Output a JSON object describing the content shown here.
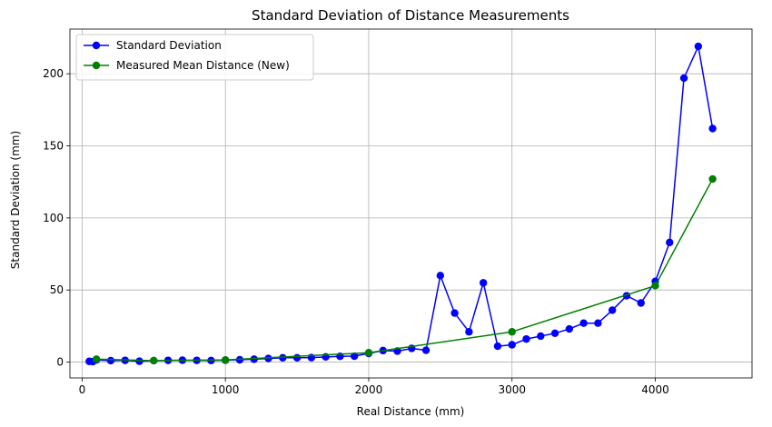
{
  "chart_data": {
    "type": "line",
    "title": "Standard Deviation of Distance Measurements",
    "xlabel": "Real Distance (mm)",
    "ylabel": "Standard Deviation (mm)",
    "xlim": [
      -85,
      4675
    ],
    "ylim": [
      -11,
      231
    ],
    "xticks": [
      0,
      1000,
      2000,
      3000,
      4000
    ],
    "yticks": [
      0,
      50,
      100,
      150,
      200
    ],
    "grid": true,
    "legend_position": "upper-left",
    "series": [
      {
        "name": "Standard Deviation",
        "color": "#0000ff",
        "marker": "circle",
        "x": [
          50,
          75,
          100,
          200,
          300,
          400,
          500,
          600,
          700,
          800,
          900,
          1000,
          1100,
          1200,
          1300,
          1400,
          1500,
          1600,
          1700,
          1800,
          1900,
          2000,
          2100,
          2200,
          2300,
          2400,
          2500,
          2600,
          2700,
          2800,
          2900,
          3000,
          3100,
          3200,
          3300,
          3400,
          3500,
          3600,
          3700,
          3800,
          3900,
          4000,
          4100,
          4200,
          4300,
          4400
        ],
        "y": [
          0.5,
          0.3,
          1.5,
          1.0,
          1.2,
          0.6,
          1.0,
          1.2,
          1.3,
          1.2,
          1.1,
          1.3,
          1.6,
          2.0,
          2.5,
          3.0,
          3.0,
          3.1,
          3.6,
          4.0,
          4.1,
          6.0,
          8.0,
          7.6,
          9.5,
          8.2,
          60,
          34,
          21,
          55,
          11,
          12,
          16,
          18,
          20,
          23,
          27,
          27,
          36,
          46,
          41,
          56,
          83,
          197,
          219,
          162
        ]
      },
      {
        "name": "Measured Mean Distance (New)",
        "color": "#008000",
        "marker": "circle",
        "x": [
          100,
          500,
          1000,
          2000,
          3000,
          4000,
          4400
        ],
        "y": [
          2.0,
          1.0,
          1.5,
          6.5,
          21,
          53,
          127
        ]
      }
    ]
  }
}
